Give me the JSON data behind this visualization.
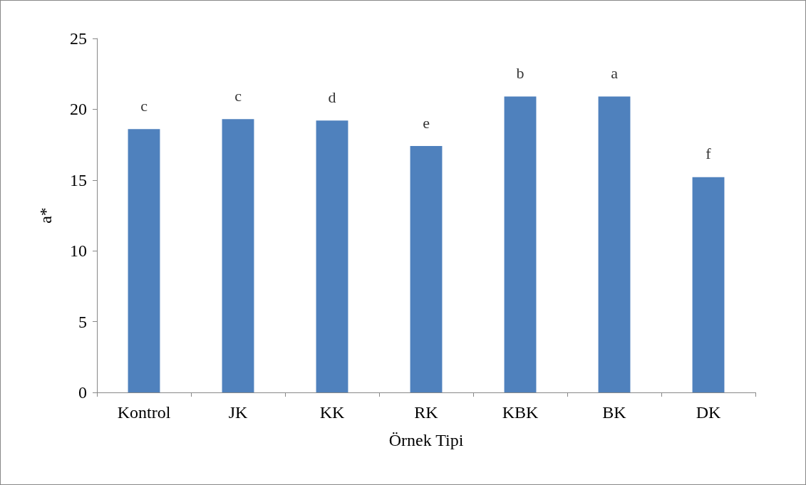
{
  "chart_data": {
    "type": "bar",
    "xlabel": "Örnek Tipi",
    "ylabel": "a*",
    "categories": [
      "Kontrol",
      "JK",
      "KK",
      "RK",
      "KBK",
      "BK",
      "DK"
    ],
    "values": [
      18.6,
      19.3,
      19.2,
      17.4,
      20.9,
      20.9,
      15.2
    ],
    "color": "#4f81bd",
    "ylim": [
      0,
      25
    ],
    "yticks": [
      0,
      5,
      10,
      15,
      20,
      25
    ],
    "grid": false,
    "annotations": [
      {
        "text": "c",
        "x": "Kontrol",
        "y": 18.6
      },
      {
        "text": "c",
        "x": "JK",
        "y": 19.3
      },
      {
        "text": "d",
        "x": "KK",
        "y": 19.2
      },
      {
        "text": "e",
        "x": "RK",
        "y": 17.4
      },
      {
        "text": "b",
        "x": "KBK",
        "y": 20.9
      },
      {
        "text": "a",
        "x": "BK",
        "y": 20.9
      },
      {
        "text": "f",
        "x": "DK",
        "y": 15.2
      }
    ]
  }
}
